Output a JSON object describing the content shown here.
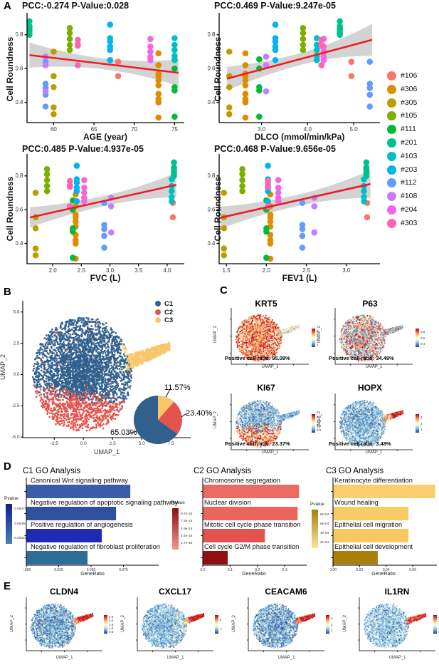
{
  "panels": {
    "a": "A",
    "b": "B",
    "c": "C",
    "d": "D",
    "e": "E"
  },
  "samples": [
    {
      "id": "#106",
      "color": "#F8766D",
      "metrics": {
        "age": 68,
        "dlco": 4.95,
        "fvc": 4.1,
        "fev1": 3.26
      },
      "roundness": [
        0.64,
        0.555
      ]
    },
    {
      "id": "#306",
      "color": "#DE8C00",
      "metrics": {
        "age": 73,
        "dlco": 2.65,
        "fvc": 2.4,
        "fev1": 2.05
      },
      "roundness": [
        0.69,
        0.62,
        0.57,
        0.555,
        0.53,
        0.5,
        0.45,
        0.42,
        0.4,
        0.31
      ]
    },
    {
      "id": "#305",
      "color": "#B79F00",
      "metrics": {
        "age": 60,
        "dlco": 2.3,
        "fvc": 1.7,
        "fev1": 1.47
      },
      "roundness": [
        0.7,
        0.555,
        0.49,
        0.37,
        0.33
      ]
    },
    {
      "id": "#105",
      "color": "#7CAE00",
      "metrics": {
        "age": 62,
        "dlco": 3.9,
        "fvc": 1.9,
        "fev1": 1.7
      },
      "roundness": [
        0.84,
        0.81,
        0.775,
        0.74,
        0.71
      ]
    },
    {
      "id": "#111",
      "color": "#00BA38",
      "metrics": {
        "age": 75,
        "dlco": 2.95,
        "fvc": 2.35,
        "fev1": 2.0
      },
      "roundness": [
        0.655,
        0.6,
        0.49,
        0.47,
        0.315
      ]
    },
    {
      "id": "#201",
      "color": "#00C08B",
      "metrics": {
        "age": 57,
        "dlco": 4.7,
        "fvc": 4.12,
        "fev1": 3.25
      },
      "roundness": [
        0.88,
        0.85,
        0.84,
        0.825,
        0.81,
        0.8
      ]
    },
    {
      "id": "#103",
      "color": "#00BFC4",
      "metrics": {
        "age": 75,
        "dlco": 4.2,
        "fvc": 4.08,
        "fev1": 3.22
      },
      "roundness": [
        0.78,
        0.74,
        0.71,
        0.675,
        0.65
      ]
    },
    {
      "id": "#203",
      "color": "#00B4F0",
      "metrics": {
        "age": 67,
        "dlco": 3.3,
        "fvc": 2.42,
        "fev1": 2.02
      },
      "roundness": [
        0.86,
        0.78,
        0.76,
        0.73,
        0.71,
        0.65
      ]
    },
    {
      "id": "#112",
      "color": "#619CFF",
      "metrics": {
        "age": 59,
        "dlco": 5.35,
        "fvc": 2.9,
        "fev1": 2.45
      },
      "roundness": [
        0.64,
        0.51,
        0.485,
        0.445,
        0.375
      ]
    },
    {
      "id": "#108",
      "color": "#C77CFF",
      "metrics": {
        "age": 59,
        "dlco": 3.1,
        "fvc": 3.02,
        "fev1": 2.6
      },
      "roundness": [
        0.67,
        0.62,
        0.465
      ]
    },
    {
      "id": "#204",
      "color": "#F564E3",
      "metrics": {
        "age": 72,
        "dlco": 4.35,
        "fvc": 2.55,
        "fev1": 2.15
      },
      "roundness": [
        0.775,
        0.73,
        0.7,
        0.67,
        0.65
      ]
    },
    {
      "id": "#303",
      "color": "#FF64B0",
      "metrics": {
        "age": 63,
        "dlco": 4.3,
        "fvc": 2.3,
        "fev1": 2.02
      },
      "roundness": [
        0.77,
        0.745,
        0.735,
        0.62
      ]
    }
  ],
  "chart_data": [
    {
      "id": "roundness_age",
      "type": "scatter",
      "title": "PCC:-0.274 P-Value:0.028",
      "xlabel": "AGE (year)",
      "ylabel": "Cell Roundness",
      "x_metric": "age",
      "xlim": [
        56.7,
        76.2
      ],
      "xticks": [
        60,
        65,
        70,
        75
      ],
      "xtick_labels": [
        "60",
        "65",
        "70",
        "75"
      ],
      "ylim": [
        0.28,
        0.93
      ],
      "yticks": [
        0.4,
        0.6,
        0.8
      ],
      "ytick_labels": [
        "0.4",
        "0.6",
        "0.8"
      ],
      "regression": {
        "x1": 57.0,
        "y1": 0.68,
        "x2": 75.5,
        "y2": 0.575
      },
      "band_width": [
        0.075,
        0.032,
        0.08
      ],
      "line_color": "#EE1C25",
      "band_color": "rgba(110,110,110,0.30)"
    },
    {
      "id": "roundness_dlco",
      "type": "scatter",
      "title": "PCC:0.469 P-Value:9.247e-05",
      "xlabel": "DLCO (mmol/min/kPa)",
      "ylabel": "Cell Roundness",
      "x_metric": "dlco",
      "xlim": [
        2.08,
        5.57
      ],
      "xticks": [
        3.0,
        4.0,
        5.0
      ],
      "xtick_labels": [
        "3.0",
        "4.0",
        "5.0"
      ],
      "ylim": [
        0.28,
        0.93
      ],
      "yticks": [
        0.4,
        0.6,
        0.8
      ],
      "ytick_labels": [
        "0.4",
        "0.6",
        "0.8"
      ],
      "regression": {
        "x1": 2.25,
        "y1": 0.54,
        "x2": 5.4,
        "y2": 0.77
      },
      "band_width": [
        0.07,
        0.035,
        0.095
      ],
      "line_color": "#EE1C25",
      "band_color": "rgba(110,110,110,0.30)"
    },
    {
      "id": "roundness_fvc",
      "type": "scatter",
      "title": "PCC:0.485 P-Value:4.937e-05",
      "xlabel": "FVC (L)",
      "ylabel": "Cell Roundness",
      "x_metric": "fvc",
      "xlim": [
        1.55,
        4.3
      ],
      "xticks": [
        2.0,
        2.5,
        3.0,
        3.5,
        4.0
      ],
      "xtick_labels": [
        "2.0",
        "2.5",
        "3.0",
        "3.5",
        "4.0"
      ],
      "ylim": [
        0.28,
        0.93
      ],
      "yticks": [
        0.4,
        0.6,
        0.8
      ],
      "ytick_labels": [
        "0.4",
        "0.6",
        "0.8"
      ],
      "regression": {
        "x1": 1.6,
        "y1": 0.554,
        "x2": 4.16,
        "y2": 0.747
      },
      "band_width": [
        0.06,
        0.03,
        0.072
      ],
      "line_color": "#EE1C25",
      "band_color": "rgba(110,110,110,0.30)"
    },
    {
      "id": "roundness_fev1",
      "type": "scatter",
      "title": "PCC:0.468 P-Value:9.656e-05",
      "xlabel": "FEV1 (L)",
      "ylabel": "Cell Roundness",
      "x_metric": "fev1",
      "xlim": [
        1.41,
        3.42
      ],
      "xticks": [
        1.5,
        2.0,
        2.5,
        3.0
      ],
      "xtick_labels": [
        "1.5",
        "2.0",
        "2.5",
        "3.0"
      ],
      "ylim": [
        0.28,
        0.93
      ],
      "yticks": [
        0.4,
        0.6,
        0.8
      ],
      "ytick_labels": [
        "0.4",
        "0.6",
        "0.8"
      ],
      "regression": {
        "x1": 1.43,
        "y1": 0.553,
        "x2": 3.3,
        "y2": 0.752
      },
      "band_width": [
        0.065,
        0.033,
        0.082
      ],
      "line_color": "#EE1C25",
      "band_color": "rgba(110,110,110,0.30)"
    },
    {
      "id": "umap_clusters",
      "type": "umap_clusters",
      "xlabel": "UMAP_1",
      "ylabel": "UMAP_2",
      "xlim": [
        -5.2,
        9.2
      ],
      "ylim": [
        -5.05,
        5.9
      ],
      "xticks": [
        -2.5,
        0.0,
        2.5,
        5.0,
        7.5
      ],
      "xtick_labels": [
        "-2.5",
        "0.0",
        "2.5",
        "5.0",
        "7.5"
      ],
      "yticks": [
        5.0,
        2.5,
        0.0,
        -2.5,
        -5.0
      ],
      "ytick_labels": [
        "5.0",
        "2.5",
        "0.0",
        "-2.5",
        "-5.0"
      ],
      "clusters": [
        {
          "name": "C1",
          "color": "#31608C",
          "pct": 65.03
        },
        {
          "name": "C2",
          "color": "#E4544E",
          "pct": 23.4
        },
        {
          "name": "C3",
          "color": "#F8C76B",
          "pct": 11.57
        }
      ]
    },
    {
      "id": "pie_clusters",
      "type": "pie",
      "slices": [
        {
          "label": "11.57%",
          "value": 11.57,
          "color": "#F8C76B"
        },
        {
          "label": "23.40%",
          "value": 23.4,
          "color": "#E4544E"
        },
        {
          "label": "65.03%",
          "value": 65.03,
          "color": "#31608C"
        }
      ]
    },
    {
      "id": "feat_krt5",
      "type": "umap_feature",
      "title": "KRT5",
      "ratio_label": "Positive cell ratio: 95.09%",
      "xlabel": "UMAP_1",
      "ylabel": "UMAP_2",
      "colorbar_ticks": [
        "4",
        "3",
        "2",
        "1"
      ],
      "pattern": "high_everywhere"
    },
    {
      "id": "feat_p63",
      "type": "umap_feature",
      "title": "P63",
      "ratio_label": "Positive cell ratio: 34.49%",
      "xlabel": "UMAP_1",
      "ylabel": "UMAP_2",
      "colorbar_ticks": [
        "0.8",
        "0.6",
        "0.4"
      ],
      "pattern": "mottled"
    },
    {
      "id": "feat_ki67",
      "type": "umap_feature",
      "title": "KI67",
      "ratio_label": "Positive cell ratio: 23.37%",
      "xlabel": "UMAP_1",
      "ylabel": "UMAP_2",
      "colorbar_ticks": [
        "2.0",
        "1.5",
        "1.0",
        "0.5"
      ],
      "pattern": "bottom_high"
    },
    {
      "id": "feat_hopx",
      "type": "umap_feature",
      "title": "HOPX",
      "ratio_label": "Positive cell ratio: 3.48%",
      "xlabel": "UMAP_1",
      "ylabel": "UMAP_2",
      "colorbar_ticks": [
        "3",
        "2",
        "1"
      ],
      "pattern": "tail_high"
    },
    {
      "id": "go_c1",
      "type": "bar",
      "title": "C1 GO Analysis",
      "xlabel": "GeneRatio",
      "categories": [
        "Canonical Wnt signaling pathway",
        "Negative regulation of apoptotic signaling pathway",
        "Positive regulation of angiogenesis",
        "Negative regulation of fibroblast proliferation"
      ],
      "values": [
        0.08,
        0.069,
        0.058,
        0.047
      ],
      "bar_colors": [
        "#3A5CA9",
        "#31509E",
        "#1F2BB5",
        "#2D6D99"
      ],
      "xticks": [
        0,
        0.025,
        0.05,
        0.075
      ],
      "xtick_labels": [
        "0.000",
        "0.025",
        "0.050",
        "0.075"
      ],
      "xmax": 0.1,
      "pvalue_legend": {
        "title": "Pvalue",
        "ticks": [
          "0.00075",
          "0.00050",
          "0.00025"
        ],
        "gradient_top": "#131C96",
        "gradient_bottom": "#4A81AC"
      }
    },
    {
      "id": "go_c2",
      "type": "bar",
      "title": "C2 GO Analysis",
      "xlabel": "GeneRatio",
      "categories": [
        "Chromosome segregation",
        "Nuclear division",
        "Mitotic cell cycle phase transition",
        "Cell cycle G2/M phase transition"
      ],
      "values": [
        0.351,
        0.346,
        0.226,
        0.09
      ],
      "bar_colors": [
        "#EC6A64",
        "#EB655F",
        "#E4544E",
        "#8E0F14"
      ],
      "xticks": [
        0,
        0.1,
        0.2,
        0.3
      ],
      "xtick_labels": [
        "0.0",
        "0.1",
        "0.2",
        "0.3"
      ],
      "xmax": 0.37,
      "pvalue_legend": {
        "title": "Pvalue",
        "ticks": [
          "9.7e-15",
          "7.3e-15",
          "4.9e-15",
          "2.4e-15",
          "1.7e-48"
        ],
        "gradient_top": "#8E0F14",
        "gradient_bottom": "#F2968F"
      }
    },
    {
      "id": "go_c3",
      "type": "bar",
      "title": "C3 GO Analysis",
      "xlabel": "GeneRatio",
      "categories": [
        "Keratinocyte differentiation",
        "Wound healing",
        "Epithelial cell migration",
        "Epithelial cell development"
      ],
      "values": [
        0.0766,
        0.0565,
        0.0565,
        0.0334
      ],
      "bar_colors": [
        "#F8CE6E",
        "#F7CB66",
        "#F6C85E",
        "#AB7F0B"
      ],
      "xticks": [
        0,
        0.02,
        0.04,
        0.06
      ],
      "xtick_labels": [
        "0.00",
        "0.02",
        "0.04",
        "0.06"
      ],
      "xmax": 0.076,
      "pvalue_legend": {
        "title": "Pvalue",
        "ticks": [
          "8e-04",
          "6e-04",
          "4e-04",
          "2e-04"
        ],
        "gradient_top": "#A87E0A",
        "gradient_bottom": "#FBE3A1"
      }
    },
    {
      "id": "feat_cldn4",
      "type": "umap_feature",
      "title": "CLDN4",
      "xlabel": "UMAP_1",
      "ylabel": "UMAP_2",
      "colorbar_ticks": [
        "2.5",
        "2.0",
        "1.5",
        "1.0",
        "0.5"
      ],
      "pattern": "tail_high_dark"
    },
    {
      "id": "feat_cxcl17",
      "type": "umap_feature",
      "title": "CXCL17",
      "xlabel": "UMAP_1",
      "ylabel": "UMAP_2",
      "colorbar_ticks": [
        "2",
        "1"
      ],
      "pattern": "tail_high_mixed"
    },
    {
      "id": "feat_ceacam6",
      "type": "umap_feature",
      "title": "CEACAM6",
      "xlabel": "UMAP_1",
      "ylabel": "UMAP_2",
      "colorbar_ticks": [
        "3",
        "2",
        "1"
      ],
      "pattern": "tail_high_dark"
    },
    {
      "id": "feat_il1rn",
      "type": "umap_feature",
      "title": "IL1RN",
      "xlabel": "UMAP_1",
      "ylabel": "UMAP_2",
      "colorbar_ticks": [
        "2.5",
        "2.0",
        "1.5",
        "1.0",
        "0.5"
      ],
      "pattern": "tail_high_light"
    }
  ]
}
